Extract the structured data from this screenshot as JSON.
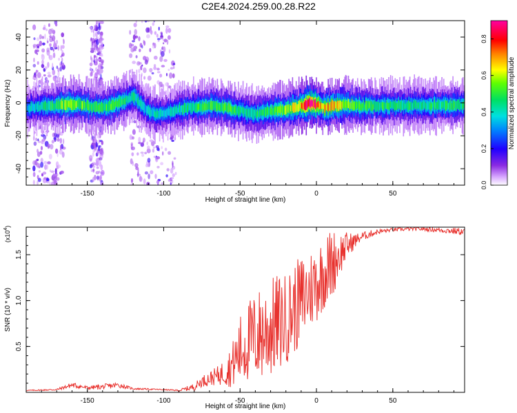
{
  "title": "C2E4.2024.259.00.28.R22",
  "colors": {
    "snr_line": "#e8322e",
    "frame": "#000000",
    "colorbar": [
      "#ffffff",
      "#c070ff",
      "#6a00e0",
      "#0000ff",
      "#00a0ff",
      "#00e0e0",
      "#00e060",
      "#60ff00",
      "#ffff00",
      "#ff8000",
      "#ff0000",
      "#ff0080"
    ]
  },
  "chart_data": [
    {
      "type": "heatmap",
      "title": "C2E4.2024.259.00.28.R22",
      "xlabel": "Height of straight line (km)",
      "ylabel": "Frequency (Hz)",
      "xlim": [
        -190,
        97
      ],
      "ylim": [
        -50,
        50
      ],
      "xticks": [
        "-150",
        "-100",
        "-50",
        "0",
        "50"
      ],
      "yticks": [
        "40",
        "20",
        "0",
        "-20",
        "-40"
      ],
      "colorbar_label": "Normalized spectral amplitude",
      "colorbar_ticks": [
        "0.0",
        "0.2",
        "0.4",
        "0.6",
        "0.8"
      ],
      "colorbar_range": [
        0,
        0.9
      ],
      "ridge": {
        "x": [
          -190,
          -175,
          -165,
          -155,
          -145,
          -135,
          -125,
          -120,
          -112,
          -105,
          -95,
          -85,
          -75,
          -65,
          -55,
          -48,
          -40,
          -30,
          -20,
          -10,
          -5,
          0,
          5,
          10,
          20,
          30,
          50,
          70,
          97
        ],
        "freq": [
          -3,
          -2,
          -1,
          -1,
          -3,
          -2,
          2,
          4,
          -4,
          -7,
          -5,
          -3,
          -2,
          -2,
          -4,
          -5,
          -7,
          -5,
          -4,
          -2,
          0,
          -1,
          -3,
          -2,
          -1,
          -2,
          -1.5,
          -1.5,
          -1.5
        ],
        "amplitude": [
          0.35,
          0.45,
          0.55,
          0.55,
          0.5,
          0.5,
          0.45,
          0.45,
          0.35,
          0.4,
          0.4,
          0.45,
          0.5,
          0.5,
          0.5,
          0.45,
          0.45,
          0.5,
          0.55,
          0.7,
          0.85,
          0.8,
          0.65,
          0.7,
          0.55,
          0.5,
          0.45,
          0.45,
          0.45
        ]
      },
      "noise_bands_km": [
        [
          -185,
          -165
        ],
        [
          -148,
          -140
        ],
        [
          -122,
          -92
        ]
      ]
    },
    {
      "type": "line",
      "xlabel": "Height of straight line (km)",
      "ylabel": "SNR (10 * v/v)",
      "y_exponent": "(x10",
      "y_exponent_power": "4",
      "y_exponent_close": ")",
      "xlim": [
        -190,
        97
      ],
      "ylim": [
        0,
        1.8
      ],
      "xticks": [
        "-150",
        "-100",
        "-50",
        "0",
        "50"
      ],
      "yticks": [
        "1.5",
        "1.0",
        "0.5"
      ],
      "envelope": {
        "x": [
          -190,
          -170,
          -160,
          -150,
          -140,
          -130,
          -120,
          -100,
          -90,
          -80,
          -75,
          -70,
          -65,
          -60,
          -55,
          -50,
          -45,
          -40,
          -35,
          -30,
          -25,
          -20,
          -15,
          -10,
          -5,
          0,
          5,
          10,
          15,
          20,
          25,
          30,
          40,
          50,
          60,
          70,
          80,
          97
        ],
        "mean_snr": [
          0.02,
          0.03,
          0.08,
          0.05,
          0.06,
          0.08,
          0.04,
          0.03,
          0.02,
          0.06,
          0.12,
          0.15,
          0.18,
          0.22,
          0.3,
          0.45,
          0.55,
          0.6,
          0.65,
          0.7,
          0.75,
          0.8,
          0.9,
          1.0,
          1.1,
          1.2,
          1.3,
          1.4,
          1.5,
          1.6,
          1.65,
          1.7,
          1.75,
          1.77,
          1.78,
          1.78,
          1.77,
          1.75
        ],
        "amplitude": [
          0.005,
          0.01,
          0.03,
          0.02,
          0.03,
          0.03,
          0.01,
          0.005,
          0.01,
          0.04,
          0.06,
          0.08,
          0.1,
          0.15,
          0.25,
          0.4,
          0.45,
          0.5,
          0.55,
          0.55,
          0.55,
          0.5,
          0.5,
          0.5,
          0.45,
          0.45,
          0.4,
          0.4,
          0.25,
          0.15,
          0.08,
          0.05,
          0.03,
          0.02,
          0.02,
          0.02,
          0.03,
          0.04
        ]
      }
    }
  ]
}
